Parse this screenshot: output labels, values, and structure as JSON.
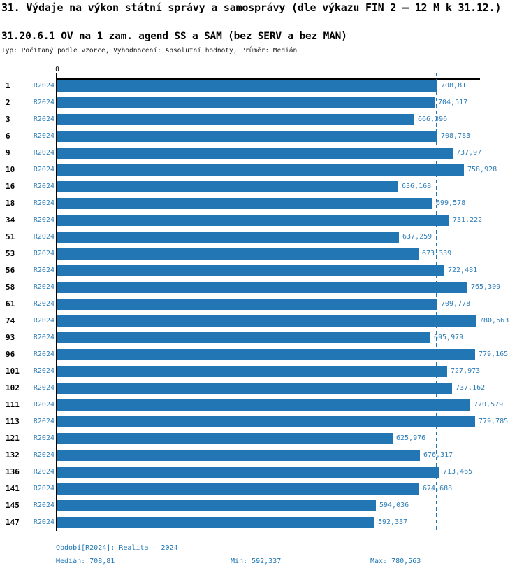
{
  "header": {
    "title": "31. Výdaje na výkon státní správy a samosprávy (dle výkazu FIN 2 – 12 M k 31.12.)",
    "subtitle": "31.20.6.1 OV na 1 zam. agend SS a SAM (bez SERV a bez MAN)",
    "meta": "Typ: Počítaný podle vzorce, Vyhodnocení: Absolutní hodnoty, Průměr: Medián"
  },
  "chart_data": {
    "type": "bar",
    "orientation": "horizontal",
    "title": "31.20.6.1 OV na 1 zam. agend SS a SAM (bez SERV a bez MAN)",
    "x_axis": {
      "zero_label": "0",
      "xlim": [
        0,
        790
      ],
      "grid": false
    },
    "period_label": "R2024",
    "median_value": 708.81,
    "min_value": 592.337,
    "max_value": 780.563,
    "colors": {
      "bar": "#2276b4",
      "label_text": "#2e7eb8",
      "median_line": "#2276b4",
      "footer_text": "#1f77b4",
      "axis": "#000000"
    },
    "categories": [
      "1",
      "2",
      "3",
      "6",
      "9",
      "10",
      "16",
      "18",
      "34",
      "51",
      "53",
      "56",
      "58",
      "61",
      "74",
      "93",
      "96",
      "101",
      "102",
      "111",
      "113",
      "121",
      "132",
      "136",
      "141",
      "145",
      "147"
    ],
    "values": [
      708.81,
      704.517,
      666.396,
      708.783,
      737.97,
      758.928,
      636.168,
      699.578,
      731.222,
      637.259,
      673.339,
      722.481,
      765.309,
      709.778,
      780.563,
      695.979,
      779.165,
      727.973,
      737.162,
      770.579,
      779.785,
      625.976,
      676.317,
      713.465,
      674.688,
      594.036,
      592.337
    ],
    "value_labels": [
      "708,81",
      "704,517",
      "666,396",
      "708,783",
      "737,97",
      "758,928",
      "636,168",
      "699,578",
      "731,222",
      "637,259",
      "673,339",
      "722,481",
      "765,309",
      "709,778",
      "780,563",
      "695,979",
      "779,165",
      "727,973",
      "737,162",
      "770,579",
      "779,785",
      "625,976",
      "676,317",
      "713,465",
      "674,688",
      "594,036",
      "592,337"
    ]
  },
  "footer": {
    "period": "Období[R2024]: Realita – 2024",
    "median": "Medián: 708,81",
    "min": "Min: 592,337",
    "max": "Max: 780,563"
  }
}
